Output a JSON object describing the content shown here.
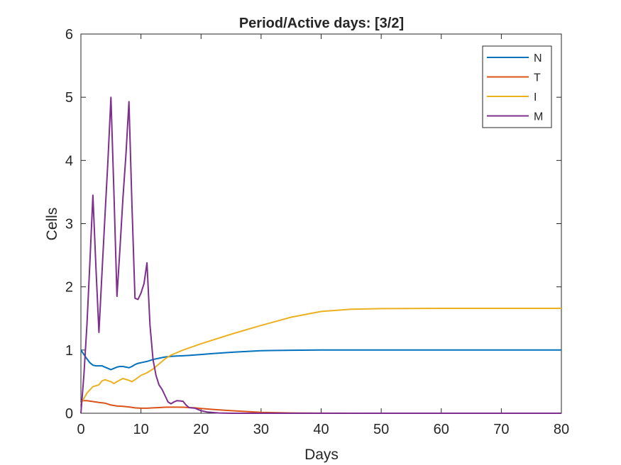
{
  "chart_data": {
    "type": "line",
    "title": "Period/Active days: [3/2]",
    "xlabel": "Days",
    "ylabel": "Cells",
    "xlim": [
      0,
      80
    ],
    "ylim": [
      0,
      6
    ],
    "xticks": [
      0,
      10,
      20,
      30,
      40,
      50,
      60,
      70,
      80
    ],
    "yticks": [
      0,
      1,
      2,
      3,
      4,
      5,
      6
    ],
    "legend_position": "top-right",
    "grid": false,
    "series": [
      {
        "name": "N",
        "color": "#0072BD",
        "points": [
          [
            0,
            1.0
          ],
          [
            0.5,
            0.93
          ],
          [
            1,
            0.86
          ],
          [
            1.5,
            0.8
          ],
          [
            2,
            0.76
          ],
          [
            2.5,
            0.75
          ],
          [
            3,
            0.75
          ],
          [
            3.5,
            0.75
          ],
          [
            4,
            0.73
          ],
          [
            4.5,
            0.71
          ],
          [
            5,
            0.69
          ],
          [
            5.5,
            0.71
          ],
          [
            6,
            0.73
          ],
          [
            6.5,
            0.74
          ],
          [
            7,
            0.74
          ],
          [
            7.5,
            0.73
          ],
          [
            8,
            0.72
          ],
          [
            8.5,
            0.74
          ],
          [
            9,
            0.77
          ],
          [
            9.5,
            0.79
          ],
          [
            10,
            0.8
          ],
          [
            11,
            0.82
          ],
          [
            12,
            0.85
          ],
          [
            13,
            0.87
          ],
          [
            14,
            0.89
          ],
          [
            15,
            0.9
          ],
          [
            16,
            0.905
          ],
          [
            17,
            0.91
          ],
          [
            18,
            0.915
          ],
          [
            20,
            0.93
          ],
          [
            22,
            0.945
          ],
          [
            25,
            0.965
          ],
          [
            28,
            0.98
          ],
          [
            30,
            0.99
          ],
          [
            35,
            0.997
          ],
          [
            40,
            1.0
          ],
          [
            50,
            1.0
          ],
          [
            60,
            1.0
          ],
          [
            70,
            1.0
          ],
          [
            80,
            1.0
          ]
        ]
      },
      {
        "name": "T",
        "color": "#D95319",
        "points": [
          [
            0,
            0.2
          ],
          [
            1,
            0.2
          ],
          [
            2,
            0.185
          ],
          [
            3,
            0.17
          ],
          [
            4,
            0.16
          ],
          [
            5,
            0.13
          ],
          [
            6,
            0.115
          ],
          [
            7,
            0.11
          ],
          [
            8,
            0.1
          ],
          [
            9,
            0.085
          ],
          [
            10,
            0.08
          ],
          [
            11,
            0.08
          ],
          [
            12,
            0.085
          ],
          [
            13,
            0.09
          ],
          [
            14,
            0.095
          ],
          [
            15,
            0.097
          ],
          [
            16,
            0.097
          ],
          [
            17,
            0.095
          ],
          [
            18,
            0.09
          ],
          [
            19,
            0.085
          ],
          [
            20,
            0.075
          ],
          [
            22,
            0.06
          ],
          [
            25,
            0.04
          ],
          [
            28,
            0.025
          ],
          [
            30,
            0.015
          ],
          [
            35,
            0.005
          ],
          [
            40,
            0.001
          ],
          [
            50,
            0.0
          ],
          [
            60,
            0.0
          ],
          [
            70,
            0.0
          ],
          [
            80,
            0.0
          ]
        ]
      },
      {
        "name": "I",
        "color": "#EDB120",
        "points": [
          [
            0,
            0.15
          ],
          [
            1,
            0.32
          ],
          [
            2,
            0.42
          ],
          [
            3,
            0.45
          ],
          [
            3.5,
            0.51
          ],
          [
            4,
            0.53
          ],
          [
            5,
            0.5
          ],
          [
            5.5,
            0.47
          ],
          [
            6,
            0.5
          ],
          [
            7,
            0.55
          ],
          [
            8,
            0.52
          ],
          [
            8.5,
            0.5
          ],
          [
            9,
            0.53
          ],
          [
            10,
            0.6
          ],
          [
            11,
            0.64
          ],
          [
            12,
            0.7
          ],
          [
            13,
            0.78
          ],
          [
            14,
            0.86
          ],
          [
            15,
            0.92
          ],
          [
            17,
            1.0
          ],
          [
            20,
            1.1
          ],
          [
            25,
            1.25
          ],
          [
            30,
            1.39
          ],
          [
            35,
            1.52
          ],
          [
            40,
            1.61
          ],
          [
            45,
            1.645
          ],
          [
            50,
            1.655
          ],
          [
            60,
            1.66
          ],
          [
            70,
            1.66
          ],
          [
            80,
            1.66
          ]
        ]
      },
      {
        "name": "M",
        "color": "#7E2F8E",
        "points": [
          [
            0,
            0.0
          ],
          [
            0.5,
            0.6
          ],
          [
            1,
            1.4
          ],
          [
            1.5,
            2.4
          ],
          [
            2,
            3.45
          ],
          [
            2.5,
            2.3
          ],
          [
            3,
            1.28
          ],
          [
            3.5,
            2.2
          ],
          [
            4,
            3.1
          ],
          [
            4.5,
            4.0
          ],
          [
            5,
            5.0
          ],
          [
            5.5,
            3.5
          ],
          [
            6,
            1.85
          ],
          [
            6.5,
            2.6
          ],
          [
            7,
            3.4
          ],
          [
            7.5,
            4.1
          ],
          [
            8,
            4.93
          ],
          [
            8.5,
            3.3
          ],
          [
            9,
            1.82
          ],
          [
            9.5,
            1.8
          ],
          [
            10,
            1.9
          ],
          [
            10.5,
            2.05
          ],
          [
            11,
            2.38
          ],
          [
            11.5,
            1.4
          ],
          [
            12,
            0.85
          ],
          [
            12.5,
            0.6
          ],
          [
            13,
            0.45
          ],
          [
            13.5,
            0.38
          ],
          [
            14,
            0.28
          ],
          [
            14.5,
            0.18
          ],
          [
            15,
            0.15
          ],
          [
            15.5,
            0.18
          ],
          [
            16,
            0.2
          ],
          [
            17,
            0.19
          ],
          [
            17.5,
            0.13
          ],
          [
            18,
            0.09
          ],
          [
            19,
            0.08
          ],
          [
            20,
            0.04
          ],
          [
            21,
            0.02
          ],
          [
            23,
            0.005
          ],
          [
            25,
            0.0
          ],
          [
            80,
            0.0
          ]
        ]
      }
    ]
  }
}
